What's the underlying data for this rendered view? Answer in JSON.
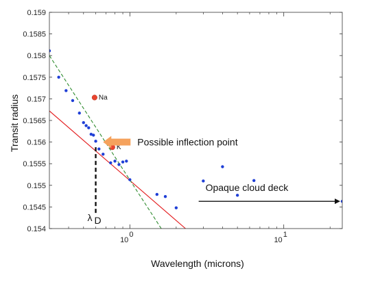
{
  "chart_data": {
    "type": "scatter",
    "title": "",
    "xlabel": "Wavelength (microns)",
    "ylabel": "Transit radius",
    "x_scale": "log",
    "xlim": [
      0.3,
      24
    ],
    "ylim": [
      0.154,
      0.159
    ],
    "y_ticks": [
      "0.154",
      "0.1545",
      "0.155",
      "0.1555",
      "0.156",
      "0.1565",
      "0.157",
      "0.1575",
      "0.158",
      "0.1585",
      "0.159"
    ],
    "x_major_ticks": [
      {
        "value": 1,
        "base": "10",
        "exp": "0"
      },
      {
        "value": 10,
        "base": "10",
        "exp": "1"
      }
    ],
    "x_minor_ticks": [
      0.4,
      0.5,
      0.6,
      0.7,
      0.8,
      0.9,
      2,
      3,
      4,
      5,
      6,
      7,
      8,
      9,
      20
    ],
    "grid": false,
    "points": {
      "color": "#1f3fd6",
      "x": [
        0.3,
        0.345,
        0.385,
        0.425,
        0.47,
        0.5,
        0.52,
        0.54,
        0.56,
        0.58,
        0.6,
        0.63,
        0.67,
        0.75,
        0.8,
        0.85,
        0.9,
        0.95,
        1.0,
        1.5,
        1.7,
        2.0,
        3.0,
        4.0,
        5.0,
        6.4,
        24.0
      ],
      "y": [
        0.15811,
        0.1575,
        0.15719,
        0.15696,
        0.15667,
        0.15645,
        0.15638,
        0.15633,
        0.15618,
        0.15616,
        0.15602,
        0.15584,
        0.15572,
        0.15552,
        0.15556,
        0.15548,
        0.15554,
        0.15556,
        0.15513,
        0.15479,
        0.15474,
        0.15448,
        0.1551,
        0.15543,
        0.15477,
        0.15511,
        0.15463
      ]
    },
    "special_points": [
      {
        "label": "Na",
        "x": 0.59,
        "y": 0.15703,
        "color": "#e8452f"
      },
      {
        "label": "K",
        "x": 0.77,
        "y": 0.15588,
        "color": "#e8452f"
      }
    ],
    "lines": [
      {
        "style": "solid",
        "color": "#e31a1c",
        "x": [
          0.3,
          2.3
        ],
        "y": [
          0.15672,
          0.154
        ]
      },
      {
        "style": "dashed",
        "color": "#2e8b2e",
        "x": [
          0.3,
          1.6
        ],
        "y": [
          0.158,
          0.154
        ]
      }
    ],
    "annotations": {
      "inflection": {
        "text": "Possible inflection point",
        "arrow_color": "#f5a25d",
        "x": 0.67,
        "y": 0.156
      },
      "cloud": {
        "text": "Opaque cloud deck",
        "x_start": 2.8,
        "x_end": 24,
        "y": 0.15463
      },
      "lambda": {
        "symbol": "λ",
        "subscript": "D",
        "x": 0.6
      }
    }
  }
}
